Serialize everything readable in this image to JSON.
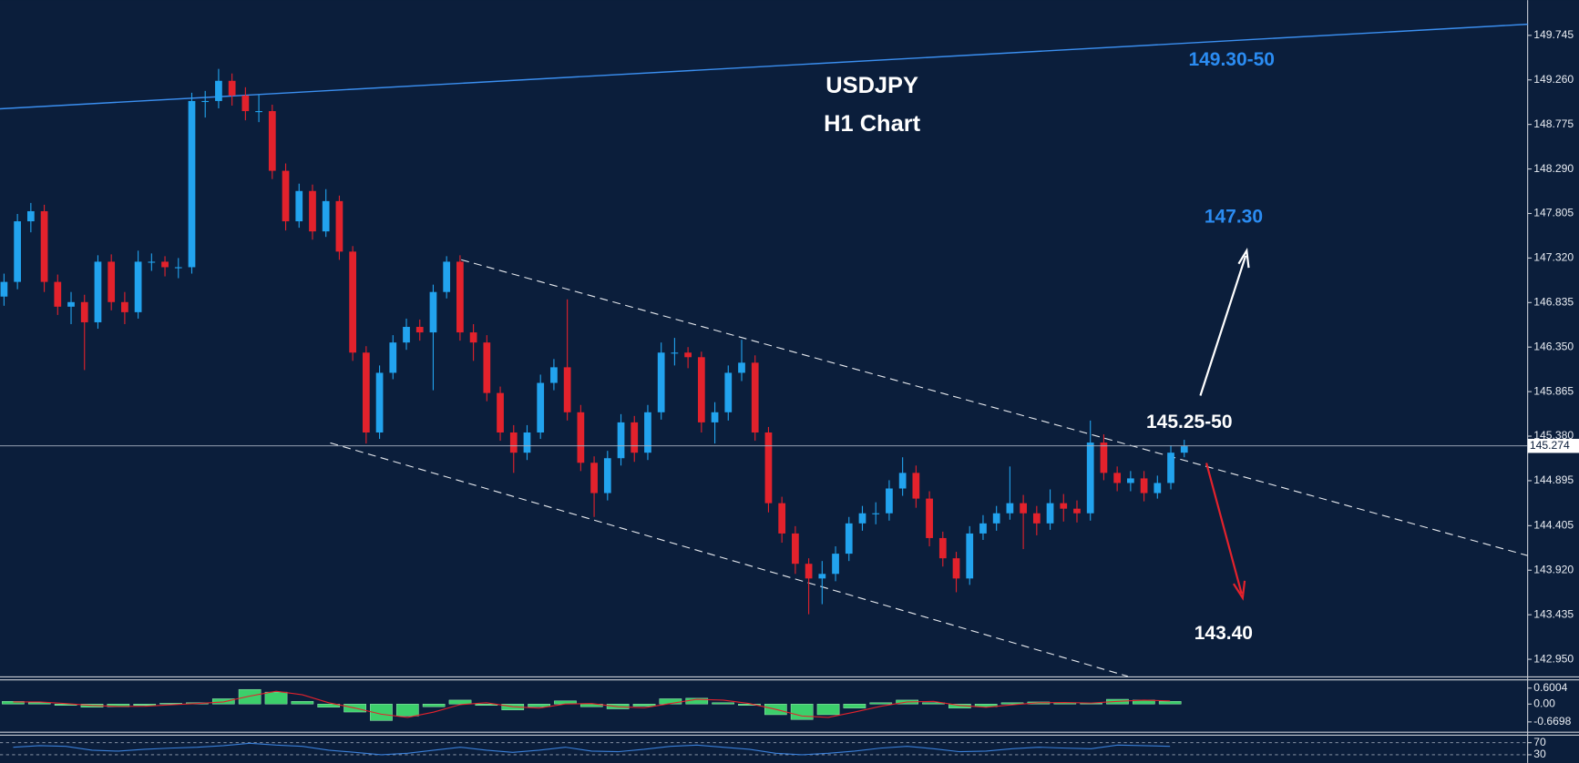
{
  "chart_data": [
    {
      "type": "candlestick",
      "title": "USDJPY",
      "subtitle": "H1 Chart",
      "up_color": "#22a3ee",
      "down_color": "#e3222c",
      "open": [
        146.9,
        147.06,
        147.72,
        147.83,
        147.06,
        146.79,
        146.84,
        146.62,
        147.28,
        146.84,
        146.73,
        147.28,
        147.28,
        147.22,
        147.22,
        149.03,
        149.03,
        149.25,
        149.09,
        148.92,
        148.92,
        148.27,
        147.72,
        148.05,
        147.61,
        147.94,
        147.39,
        146.29,
        145.42,
        146.07,
        146.4,
        146.57,
        146.51,
        146.95,
        147.28,
        146.51,
        146.4,
        145.85,
        145.42,
        145.2,
        145.42,
        145.96,
        146.13,
        145.64,
        145.09,
        144.76,
        145.14,
        145.53,
        145.2,
        145.64,
        146.29,
        146.29,
        146.24,
        145.53,
        145.64,
        146.07,
        146.18,
        145.42,
        144.65,
        144.32,
        143.99,
        143.83,
        143.88,
        144.1,
        144.43,
        144.54,
        144.54,
        144.81,
        144.98,
        144.7,
        144.27,
        144.05,
        143.83,
        144.32,
        144.43,
        144.54,
        144.65,
        144.54,
        144.43,
        144.65,
        144.59,
        144.54,
        145.31,
        144.98,
        144.87,
        144.92,
        144.76,
        144.87,
        145.2
      ],
      "high": [
        147.15,
        147.8,
        147.92,
        147.9,
        147.14,
        146.95,
        146.92,
        147.35,
        147.36,
        146.95,
        147.4,
        147.37,
        147.34,
        147.32,
        149.12,
        149.14,
        149.38,
        149.33,
        149.18,
        149.1,
        148.99,
        148.35,
        148.13,
        148.12,
        148.07,
        148.0,
        147.45,
        146.36,
        146.15,
        146.48,
        146.66,
        146.65,
        147.03,
        147.34,
        147.35,
        146.6,
        146.48,
        145.92,
        145.5,
        145.5,
        146.05,
        146.22,
        146.87,
        145.72,
        145.16,
        145.22,
        145.62,
        145.6,
        145.72,
        146.4,
        146.45,
        146.35,
        146.3,
        145.75,
        146.15,
        146.43,
        146.26,
        145.48,
        144.72,
        144.4,
        144.05,
        144.02,
        144.18,
        144.5,
        144.62,
        144.66,
        144.9,
        145.15,
        145.06,
        144.78,
        144.34,
        144.12,
        144.4,
        144.52,
        144.62,
        145.05,
        144.74,
        144.62,
        144.8,
        144.75,
        144.68,
        145.55,
        145.4,
        145.05,
        145.0,
        145.0,
        144.95,
        145.28,
        145.34
      ],
      "low": [
        146.8,
        146.98,
        147.6,
        146.95,
        146.7,
        146.6,
        146.1,
        146.55,
        146.75,
        146.6,
        146.66,
        147.18,
        147.12,
        147.1,
        147.15,
        148.85,
        148.95,
        148.98,
        148.82,
        148.8,
        148.18,
        147.62,
        147.65,
        147.52,
        147.55,
        147.3,
        146.2,
        145.3,
        145.35,
        146.0,
        146.32,
        146.42,
        145.88,
        146.88,
        146.42,
        146.2,
        145.76,
        145.33,
        144.98,
        145.12,
        145.35,
        145.88,
        145.55,
        145.0,
        144.5,
        144.68,
        145.06,
        145.1,
        145.12,
        145.56,
        146.15,
        146.12,
        145.42,
        145.3,
        145.55,
        145.98,
        145.33,
        144.55,
        144.22,
        143.88,
        143.44,
        143.55,
        143.8,
        144.02,
        144.35,
        144.42,
        144.46,
        144.73,
        144.6,
        144.18,
        143.96,
        143.68,
        143.76,
        144.25,
        144.35,
        144.47,
        144.15,
        144.3,
        144.36,
        144.45,
        144.44,
        144.46,
        144.9,
        144.78,
        144.78,
        144.67,
        144.7,
        144.8,
        145.15
      ],
      "close": [
        147.06,
        147.72,
        147.83,
        147.06,
        146.79,
        146.84,
        146.62,
        147.28,
        146.84,
        146.73,
        147.28,
        147.28,
        147.22,
        147.22,
        149.03,
        149.03,
        149.25,
        149.09,
        148.92,
        148.92,
        148.27,
        147.72,
        148.05,
        147.61,
        147.94,
        147.39,
        146.29,
        145.42,
        146.07,
        146.4,
        146.57,
        146.51,
        146.95,
        147.28,
        146.51,
        146.4,
        145.85,
        145.42,
        145.2,
        145.42,
        145.96,
        146.13,
        145.64,
        145.09,
        144.76,
        145.14,
        145.53,
        145.2,
        145.64,
        146.29,
        146.29,
        146.24,
        145.53,
        145.64,
        146.07,
        146.18,
        145.42,
        144.65,
        144.32,
        143.99,
        143.83,
        143.88,
        144.1,
        144.43,
        144.54,
        144.54,
        144.81,
        144.98,
        144.7,
        144.27,
        144.05,
        143.83,
        144.32,
        144.43,
        144.54,
        144.65,
        144.54,
        144.43,
        144.65,
        144.59,
        144.54,
        145.31,
        144.98,
        144.87,
        144.92,
        144.76,
        144.87,
        145.2,
        145.27
      ],
      "current_price": 145.274,
      "ylim": [
        142.764,
        150.129
      ],
      "yticks": [
        149.745,
        {
          "value": 149.26,
          "label": "149.260"
        },
        148.775,
        {
          "value": 148.29,
          "label": "148.290"
        },
        147.805,
        {
          "value": 147.32,
          "label": "147.320"
        },
        146.835,
        {
          "value": 146.35,
          "label": "146.350"
        },
        145.865,
        {
          "value": 145.38,
          "label": "145.380"
        },
        144.895,
        144.405,
        {
          "value": 143.92,
          "label": "143.920"
        },
        143.435,
        {
          "value": 142.95,
          "label": "142.950"
        }
      ],
      "annotations": [
        {
          "text": "149.30-50",
          "color": "#2b8cf2"
        },
        {
          "text": "147.30",
          "color": "#2b8cf2"
        },
        {
          "text": "145.25-50",
          "color": "#ffffff"
        },
        {
          "text": "143.40",
          "color": "#ffffff"
        }
      ]
    },
    {
      "type": "macd",
      "color": "#3ccf6b",
      "signal_color": "#e3222c",
      "histogram": [
        0.1,
        0.05,
        -0.05,
        -0.12,
        -0.1,
        -0.05,
        0.03,
        0.05,
        0.2,
        0.55,
        0.45,
        0.1,
        -0.12,
        -0.3,
        -0.62,
        -0.45,
        -0.1,
        0.15,
        -0.05,
        -0.22,
        -0.1,
        0.12,
        -0.1,
        -0.18,
        -0.08,
        0.2,
        0.22,
        0.05,
        -0.05,
        -0.4,
        -0.58,
        -0.4,
        -0.15,
        0.05,
        0.15,
        0.05,
        -0.15,
        -0.1,
        0.05,
        0.08,
        0.05,
        0.03,
        0.18,
        0.15,
        0.1
      ],
      "signal": [
        0.08,
        0.08,
        0.02,
        -0.05,
        -0.09,
        -0.08,
        -0.03,
        0.02,
        0.08,
        0.3,
        0.48,
        0.35,
        0.05,
        -0.15,
        -0.38,
        -0.5,
        -0.3,
        -0.02,
        0.05,
        -0.1,
        -0.15,
        0.0,
        0.02,
        -0.1,
        -0.14,
        0.02,
        0.18,
        0.15,
        0.02,
        -0.2,
        -0.45,
        -0.5,
        -0.3,
        -0.08,
        0.08,
        0.1,
        -0.05,
        -0.12,
        -0.03,
        0.05,
        0.06,
        0.04,
        0.1,
        0.15,
        0.12
      ],
      "ylim": [
        -1.0,
        0.89
      ],
      "yticks": [
        0.6004,
        {
          "value": 0,
          "label": "0.00"
        },
        -0.6698
      ]
    },
    {
      "type": "rsi",
      "color": "#3a7fd8",
      "values": [
        55,
        60,
        58,
        45,
        42,
        48,
        52,
        55,
        60,
        68,
        62,
        58,
        45,
        38,
        30,
        35,
        45,
        55,
        45,
        38,
        45,
        55,
        42,
        40,
        48,
        58,
        62,
        55,
        48,
        35,
        30,
        35,
        42,
        52,
        58,
        50,
        40,
        42,
        50,
        55,
        52,
        50,
        62,
        60,
        58
      ],
      "ylim": [
        3,
        93
      ],
      "yticks": [
        70,
        30
      ]
    }
  ]
}
